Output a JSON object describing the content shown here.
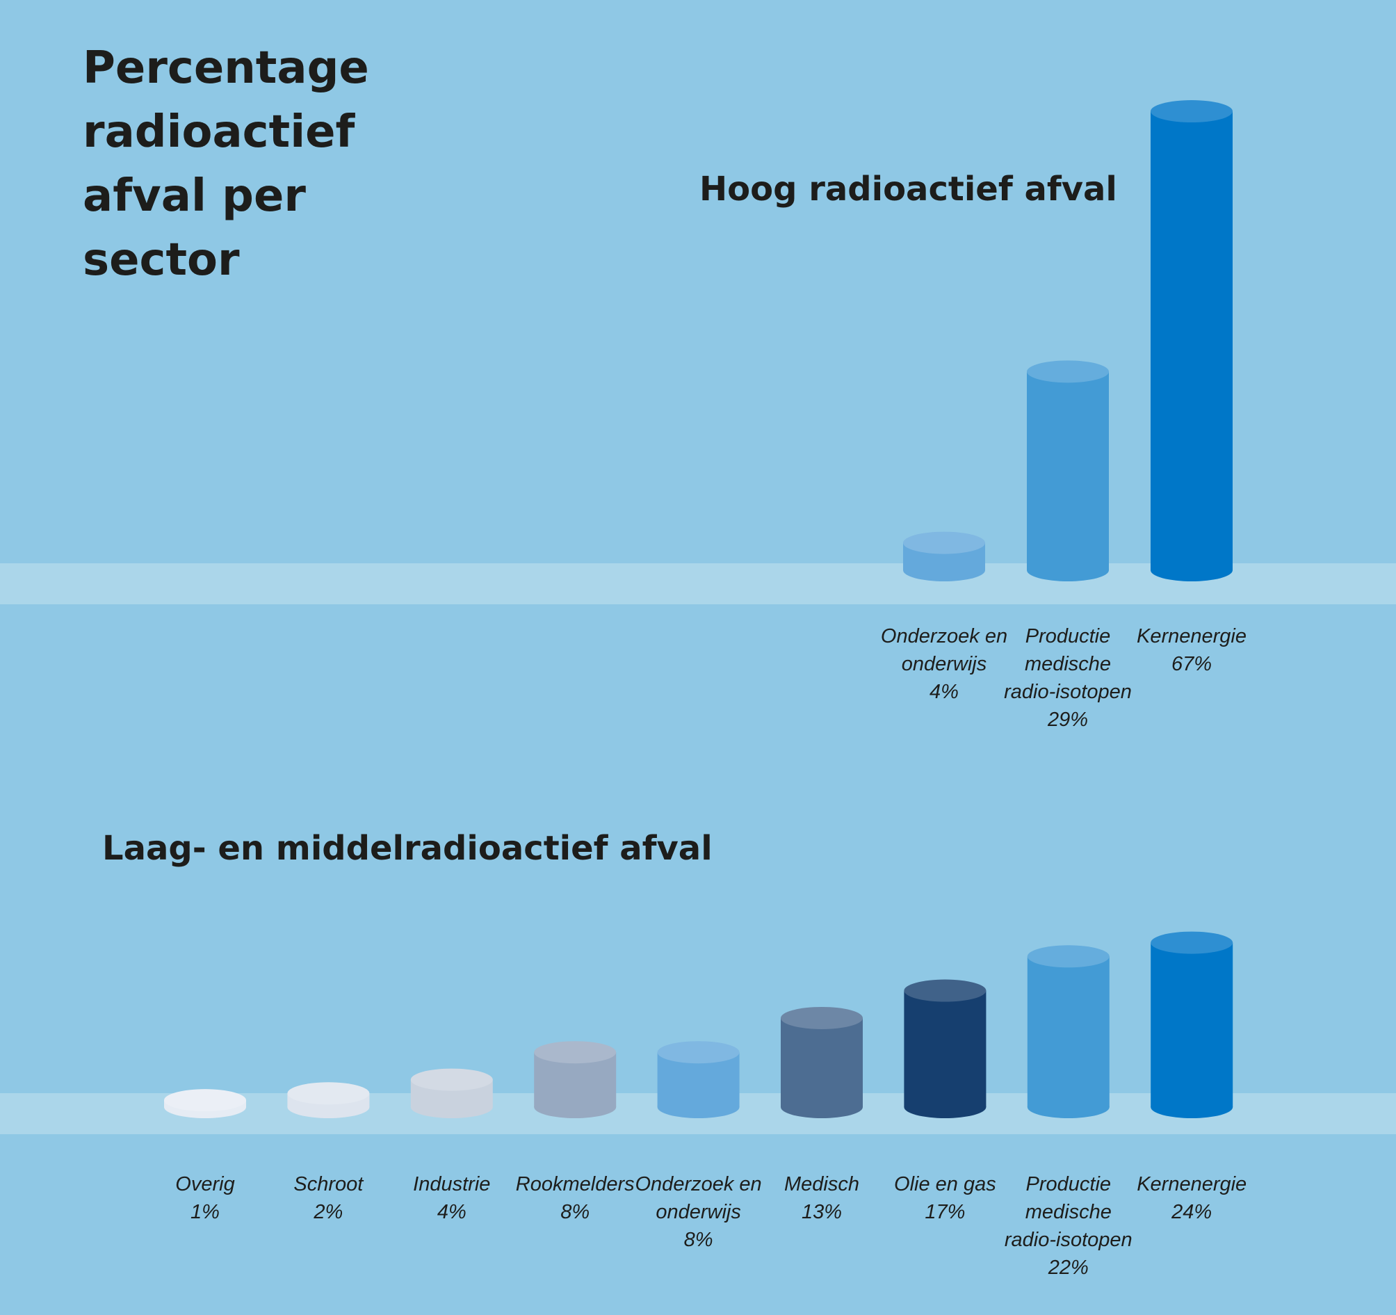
{
  "title": "Percentage radioactief afval per sector",
  "chart_data": [
    {
      "type": "bar",
      "title": "Hoog radioactief afval",
      "categories": [
        "Onderzoek en onderwijs",
        "Productie medische radio-isotopen",
        "Kernenergie"
      ],
      "values": [
        4,
        29,
        67
      ],
      "value_labels": [
        "4%",
        "29%",
        "67%"
      ],
      "colors": [
        "#64a9dc",
        "#439bd5",
        "#0077c8"
      ]
    },
    {
      "type": "bar",
      "title": "Laag- en middelradioactief afval",
      "categories": [
        "Overig",
        "Schroot",
        "Industrie",
        "Rookmelders",
        "Onderzoek en onderwijs",
        "Medisch",
        "Olie en gas",
        "Productie medische radio-isotopen",
        "Kernenergie"
      ],
      "values": [
        1,
        2,
        4,
        8,
        8,
        13,
        17,
        22,
        24
      ],
      "value_labels": [
        "1%",
        "2%",
        "4%",
        "8%",
        "8%",
        "13%",
        "17%",
        "22%",
        "24%"
      ],
      "colors": [
        "#e6ecf4",
        "#dde4ee",
        "#c9d2de",
        "#97a9c1",
        "#64a9dc",
        "#4d6d92",
        "#163f6f",
        "#439bd5",
        "#0077c8"
      ]
    }
  ]
}
